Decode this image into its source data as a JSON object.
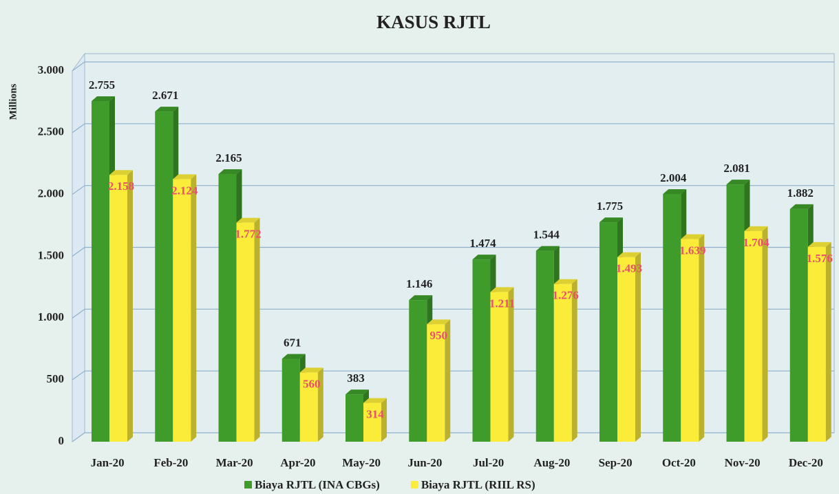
{
  "chart_data": {
    "type": "bar",
    "title": "KASUS RJTL",
    "y_label": "Millions",
    "categories": [
      "Jan-20",
      "Feb-20",
      "Mar-20",
      "Apr-20",
      "May-20",
      "Jun-20",
      "Jul-20",
      "Aug-20",
      "Sep-20",
      "Oct-20",
      "Nov-20",
      "Dec-20"
    ],
    "series": [
      {
        "name": "Biaya RJTL (INA CBGs)",
        "color": "#3f9c2b",
        "label_color": "#222222",
        "values": [
          2755,
          2671,
          2165,
          671,
          383,
          1146,
          1474,
          1544,
          1775,
          2004,
          2081,
          1882
        ],
        "value_labels": [
          "2.755",
          "2.671",
          "2.165",
          "671",
          "383",
          "1.146",
          "1.474",
          "1.544",
          "1.775",
          "2.004",
          "2.081",
          "1.882"
        ]
      },
      {
        "name": "Biaya RJTL (RIIL RS)",
        "color": "#fbec3a",
        "label_color": "#e8506a",
        "values": [
          2158,
          2124,
          1772,
          560,
          314,
          950,
          1211,
          1276,
          1493,
          1639,
          1704,
          1576
        ],
        "value_labels": [
          "2.158",
          "2.124",
          "1.772",
          "560",
          "314",
          "950",
          "1.211",
          "1.276",
          "1.493",
          "1.639",
          "1.704",
          "1.576"
        ]
      }
    ],
    "ylim": [
      0,
      3000
    ],
    "yticks": [
      0,
      500,
      {
        "value": 1000,
        "label": "1.000"
      },
      {
        "value": 1500,
        "label": "1.500"
      },
      {
        "value": 2000,
        "label": "2.000"
      },
      {
        "value": 2500,
        "label": "2.500"
      },
      {
        "value": 3000,
        "label": "3.000"
      }
    ],
    "grid": true
  }
}
